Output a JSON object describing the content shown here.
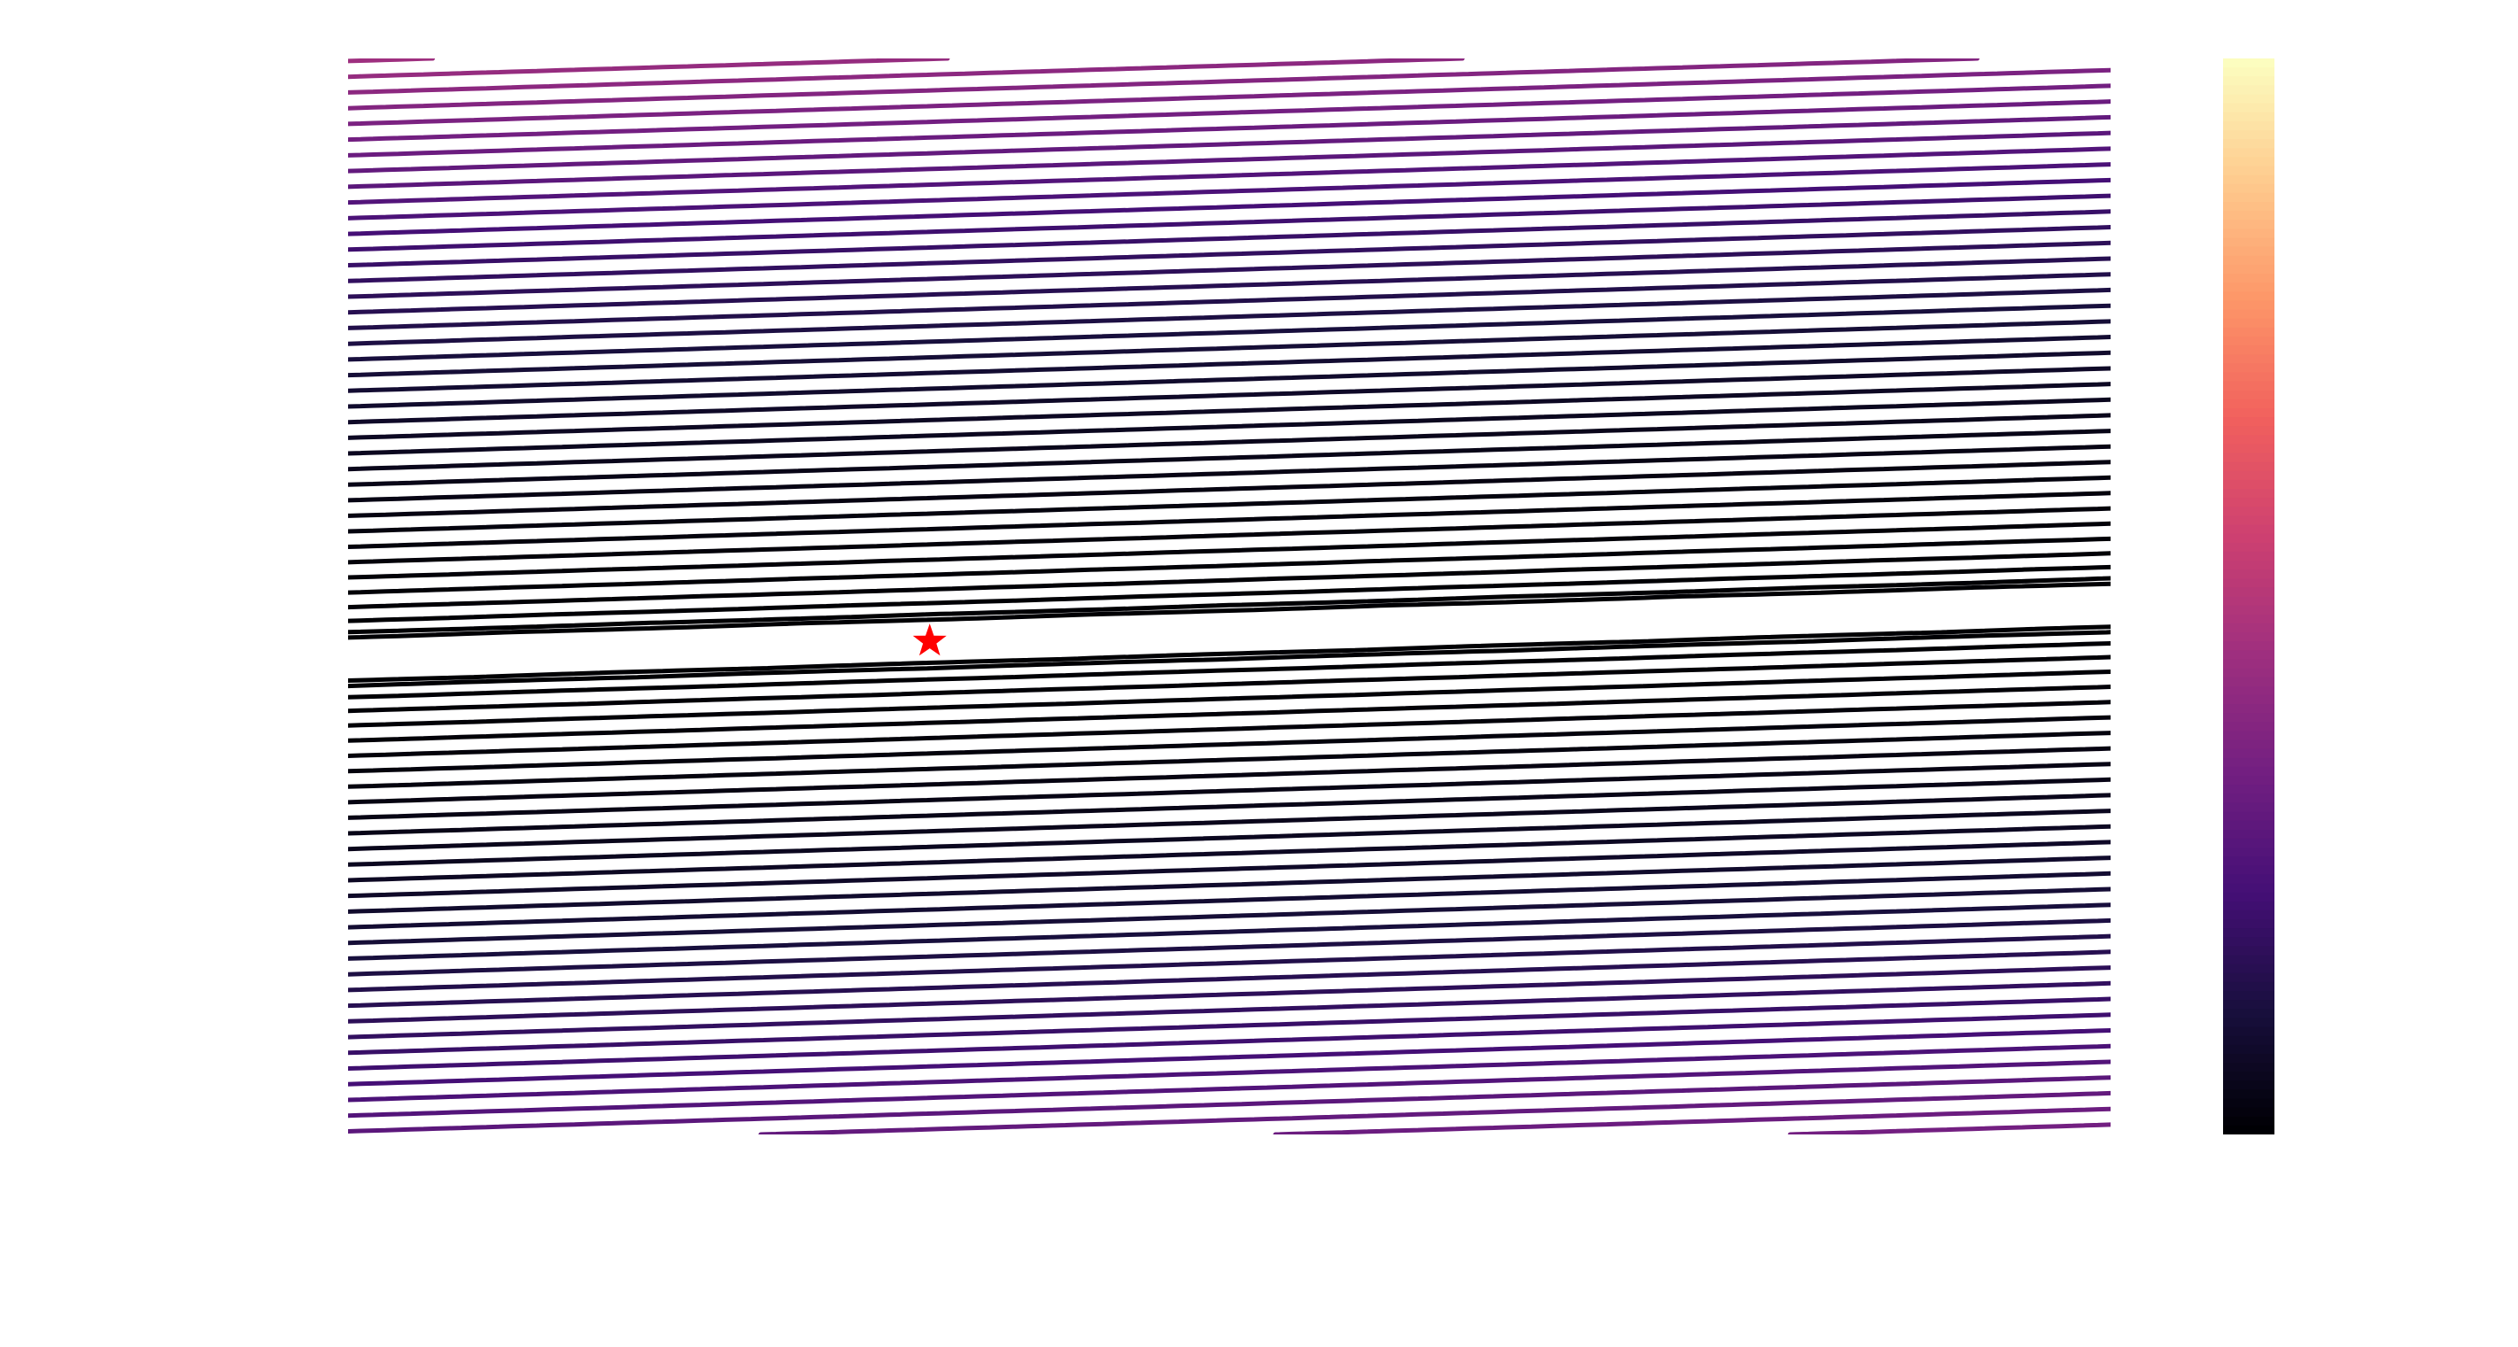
{
  "chart_data": {
    "type": "contour",
    "title": "",
    "xlabel": "",
    "ylabel": "",
    "colormap": "magma",
    "colors": {
      "colormap_stops": [
        "#000004",
        "#180f3d",
        "#440f76",
        "#721f81",
        "#9e2f7f",
        "#cd4071",
        "#f1605d",
        "#fd9668",
        "#feca8d",
        "#fcfdbf"
      ],
      "minimum_marker": "#ff0000",
      "background": "#ffffff"
    },
    "grid": false,
    "colorbar": true,
    "colorbar_ticks": [],
    "field": {
      "description_kind": "tilted quadratic valley",
      "center": [
        0.0,
        0.0
      ],
      "valley_slope": 0.06,
      "cross_scale": 1.0,
      "along_scale": 0.08,
      "value_range": [
        0.0,
        1.0
      ]
    },
    "contour_levels": {
      "count": 58,
      "min": 0.0006,
      "max": 1.0,
      "spacing": "quadratic"
    },
    "minimum_marker": {
      "x": 0.0,
      "y": 0.0,
      "symbol": "star"
    },
    "xlim": [
      -0.33,
      0.67
    ],
    "ylim": [
      -0.55,
      0.65
    ]
  },
  "icons": {
    "minimum": "star-icon"
  }
}
